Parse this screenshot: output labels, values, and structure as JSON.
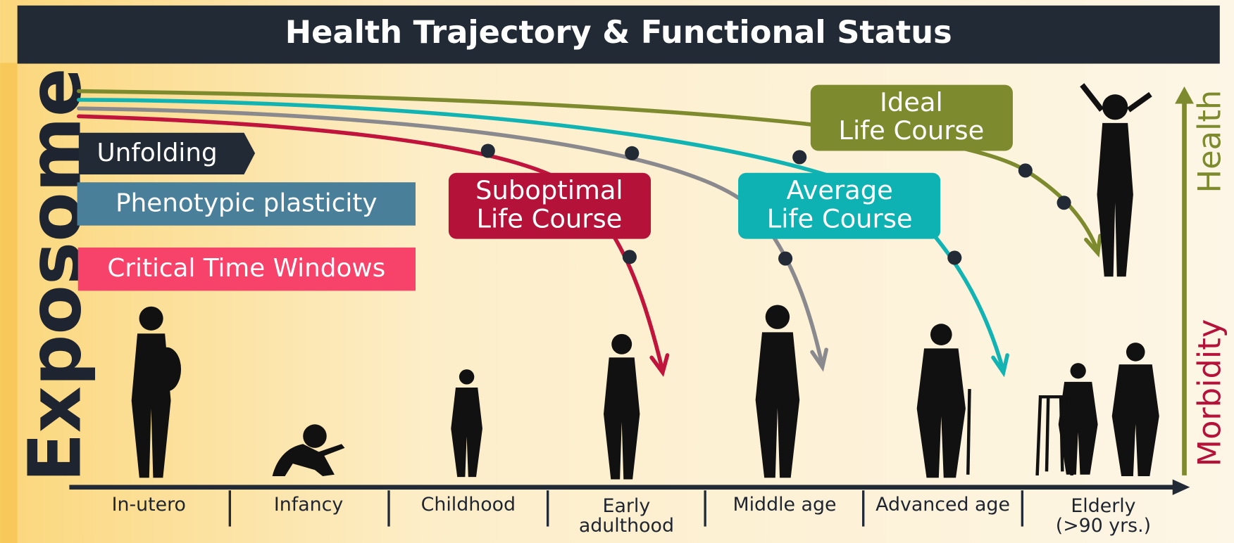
{
  "title": "Health Trajectory & Functional Status",
  "side_label": "Exposome",
  "tags": [
    "Unfolding",
    "Phenotypic plasticity",
    "Critical Time Windows"
  ],
  "trajectories": [
    {
      "lines": [
        "Suboptimal",
        "Life Course"
      ]
    },
    {
      "lines": [
        "Average",
        "Life Course"
      ]
    },
    {
      "lines": [
        "Ideal",
        "Life Course"
      ]
    }
  ],
  "axis_labels": {
    "health": "Health",
    "morbidity": "Morbidity"
  },
  "stages": [
    {
      "lines": [
        "In-utero"
      ]
    },
    {
      "lines": [
        "Infancy"
      ]
    },
    {
      "lines": [
        "Childhood"
      ]
    },
    {
      "lines": [
        "Early",
        "adulthood"
      ]
    },
    {
      "lines": [
        "Middle age"
      ]
    },
    {
      "lines": [
        "Advanced age"
      ]
    },
    {
      "lines": [
        "Elderly",
        "(>90 yrs.)"
      ]
    }
  ]
}
